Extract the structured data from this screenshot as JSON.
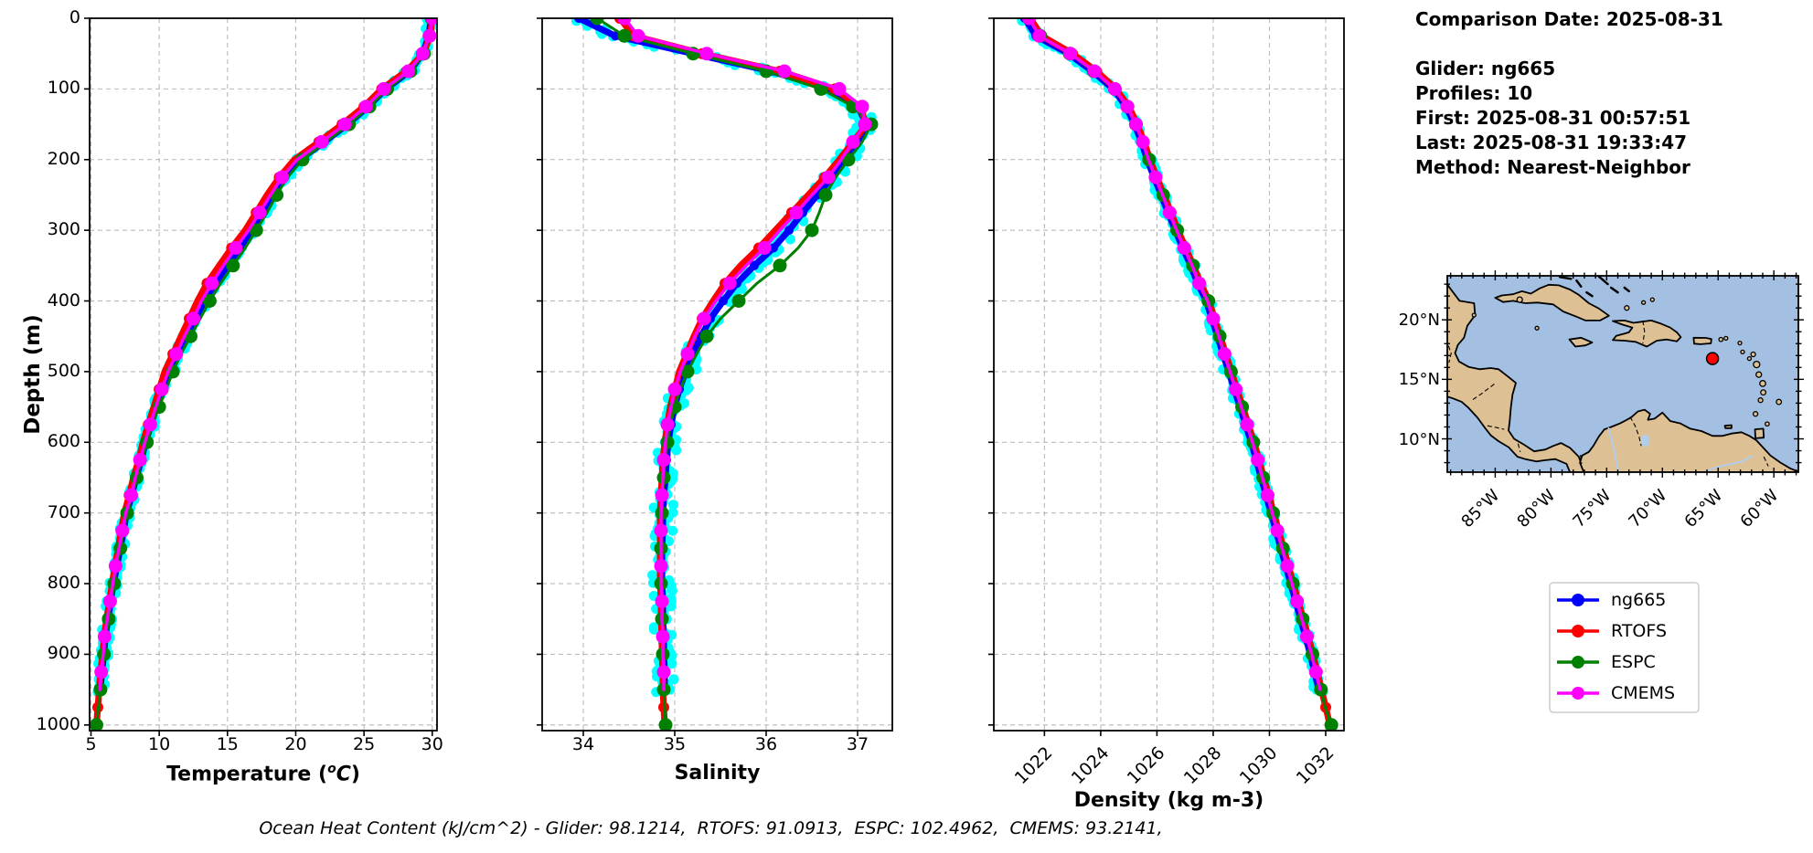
{
  "info_panel": {
    "lines": [
      "Comparison Date: 2025-08-31",
      "",
      "Glider: ng665",
      "Profiles: 10",
      "First: 2025-08-31 00:57:51",
      "Last: 2025-08-31 19:33:47",
      "Method: Nearest-Neighbor"
    ]
  },
  "caption": {
    "text": "Ocean Heat Content (kJ/cm^2) - Glider: 98.1214,  RTOFS: 91.0913,  ESPC: 102.4962,  CMEMS: 93.2141,"
  },
  "axes": {
    "depth_label": "Depth (m)",
    "depth_ticks": [
      0,
      100,
      200,
      300,
      400,
      500,
      600,
      700,
      800,
      900,
      1000
    ]
  },
  "legend": {
    "items": [
      {
        "label": "ng665",
        "color": "#0000ff"
      },
      {
        "label": "RTOFS",
        "color": "#ff0000"
      },
      {
        "label": "ESPC",
        "color": "#008000"
      },
      {
        "label": "CMEMS",
        "color": "#ff00ff"
      }
    ]
  },
  "map": {
    "extent": {
      "lon_min": -89.3,
      "lon_max": -57.8,
      "lat_min": 7.2,
      "lat_max": 23.7
    },
    "lon_ticks": [
      {
        "label": "85°W",
        "lon": -85
      },
      {
        "label": "80°W",
        "lon": -80
      },
      {
        "label": "75°W",
        "lon": -75
      },
      {
        "label": "70°W",
        "lon": -70
      },
      {
        "label": "65°W",
        "lon": -65
      },
      {
        "label": "60°W",
        "lon": -60
      }
    ],
    "lat_ticks": [
      {
        "label": "20°N",
        "lat": 20
      },
      {
        "label": "15°N",
        "lat": 15
      },
      {
        "label": "10°N",
        "lat": 10
      }
    ],
    "marker": {
      "lon": -65.5,
      "lat": 16.75
    },
    "colors": {
      "ocean": "#a3c0e2",
      "land": "#ddc093",
      "coast": "#000000",
      "water": "#b3cdec",
      "marker": "#ff0000"
    }
  },
  "colors": {
    "grid": "#b9b9b9",
    "spine": "#000000",
    "background": "#ffffff"
  },
  "chart_data": {
    "type": "line",
    "ylabel": "Depth (m)",
    "ylim": [
      0,
      1008
    ],
    "depths": [
      0,
      25,
      50,
      75,
      100,
      125,
      150,
      175,
      200,
      225,
      250,
      275,
      300,
      325,
      350,
      375,
      400,
      425,
      450,
      475,
      500,
      525,
      550,
      575,
      600,
      625,
      650,
      675,
      700,
      725,
      750,
      775,
      800,
      825,
      850,
      875,
      900,
      925,
      950,
      975,
      1000
    ],
    "glider_raw": {
      "name": "glider-raw-scatter",
      "color": "#00ffff",
      "dot_radius": 5.5,
      "jitter": {
        "temperature": 0.3,
        "salinity": 0.1,
        "density": 0.16
      }
    },
    "charts": [
      {
        "id": "temperature",
        "xlabel_parts": {
          "pre": "Temperature (",
          "sup": "o",
          "it": "C",
          "post": ")"
        },
        "xlim": [
          4.9,
          30.35
        ],
        "xticks": [
          5,
          10,
          15,
          20,
          25,
          30
        ],
        "xtick_labels": [
          "5",
          "10",
          "15",
          "20",
          "25",
          "30"
        ],
        "rotate_xticklabels": false,
        "series": [
          {
            "name": "ng665",
            "color": "#0000ff",
            "line_width": 7,
            "marker_size": 5,
            "markers": "all",
            "values": [
              29.9,
              29.75,
              29.3,
              28.35,
              26.6,
              25.3,
              23.8,
              22.1,
              20.3,
              19.2,
              18.4,
              17.6,
              16.8,
              15.9,
              15.0,
              14.1,
              13.3,
              12.7,
              12.0,
              11.4,
              10.8,
              10.3,
              9.8,
              9.4,
              9.0,
              8.7,
              8.3,
              8.0,
              7.6,
              7.4,
              7.15,
              6.9,
              6.65,
              6.45,
              6.25,
              6.05,
              5.95,
              5.8,
              5.7
            ]
          },
          {
            "name": "RTOFS",
            "color": "#ff0000",
            "line_width": 7,
            "marker_size": 6,
            "markers": "odd",
            "values": [
              30.0,
              29.85,
              29.35,
              28.1,
              26.3,
              25.0,
              23.4,
              21.7,
              19.9,
              18.8,
              17.9,
              17.1,
              16.3,
              15.3,
              14.4,
              13.5,
              12.8,
              12.2,
              11.6,
              11.0,
              10.4,
              10.0,
              9.6,
              9.2,
              8.8,
              8.5,
              8.1,
              7.8,
              7.45,
              7.2,
              7.0,
              6.75,
              6.55,
              6.35,
              6.15,
              5.95,
              5.85,
              5.7,
              5.6,
              5.5,
              5.4
            ]
          },
          {
            "name": "ESPC",
            "color": "#008000",
            "line_width": 3,
            "marker_size": 7.5,
            "markers": "even",
            "values": [
              29.95,
              29.8,
              29.4,
              28.4,
              26.7,
              25.4,
              23.9,
              22.2,
              20.5,
              19.4,
              18.6,
              17.9,
              17.1,
              16.3,
              15.4,
              14.5,
              13.7,
              13.0,
              12.3,
              11.6,
              11.0,
              10.5,
              10.0,
              9.5,
              9.1,
              8.75,
              8.35,
              8.05,
              7.65,
              7.4,
              7.15,
              6.9,
              6.7,
              6.5,
              6.3,
              6.1,
              5.95,
              5.8,
              5.7,
              5.55,
              5.4
            ]
          },
          {
            "name": "CMEMS",
            "color": "#ff00ff",
            "line_width": 3.5,
            "marker_size": 7.5,
            "markers": "odd",
            "values": [
              30.0,
              29.8,
              29.3,
              28.25,
              26.45,
              25.15,
              23.6,
              21.9,
              20.1,
              19.0,
              18.15,
              17.35,
              16.55,
              15.6,
              14.7,
              13.85,
              13.1,
              12.5,
              11.85,
              11.25,
              10.65,
              10.2,
              9.75,
              9.35,
              8.95,
              8.6,
              8.25,
              7.95,
              7.55,
              7.3,
              7.05,
              6.8,
              6.6,
              6.4,
              6.2,
              6.0,
              5.9,
              5.75,
              5.65
            ]
          }
        ]
      },
      {
        "id": "salinity",
        "xlabel": "Salinity",
        "xlim": [
          33.55,
          37.38
        ],
        "xticks": [
          34,
          35,
          36,
          37
        ],
        "xtick_labels": [
          "34",
          "35",
          "36",
          "37"
        ],
        "rotate_xticklabels": false,
        "series": [
          {
            "name": "ng665",
            "color": "#0000ff",
            "line_width": 7,
            "marker_size": 5,
            "markers": "all",
            "values": [
              33.95,
              34.35,
              35.2,
              36.05,
              36.7,
              37.0,
              37.1,
              37.0,
              36.86,
              36.72,
              36.56,
              36.4,
              36.25,
              36.08,
              35.87,
              35.68,
              35.53,
              35.39,
              35.29,
              35.2,
              35.12,
              35.05,
              35.0,
              34.96,
              34.93,
              34.91,
              34.9,
              34.88,
              34.87,
              34.87,
              34.86,
              34.86,
              34.86,
              34.87,
              34.87,
              34.88,
              34.88,
              34.89,
              34.89
            ]
          },
          {
            "name": "RTOFS",
            "color": "#ff0000",
            "line_width": 7,
            "marker_size": 6,
            "markers": "odd",
            "values": [
              34.4,
              34.55,
              35.3,
              36.15,
              36.75,
              37.02,
              37.1,
              36.95,
              36.8,
              36.64,
              36.46,
              36.28,
              36.1,
              35.92,
              35.72,
              35.55,
              35.42,
              35.3,
              35.21,
              35.13,
              35.05,
              35.0,
              34.95,
              34.92,
              34.89,
              34.87,
              34.86,
              34.85,
              34.84,
              34.84,
              34.84,
              34.84,
              34.84,
              34.85,
              34.85,
              34.86,
              34.86,
              34.87,
              34.87,
              34.88,
              34.89
            ]
          },
          {
            "name": "ESPC",
            "color": "#008000",
            "line_width": 3,
            "marker_size": 7.5,
            "markers": "even",
            "values": [
              34.15,
              34.45,
              35.2,
              36.0,
              36.6,
              36.95,
              37.15,
              37.05,
              36.9,
              36.76,
              36.65,
              36.58,
              36.5,
              36.35,
              36.15,
              35.9,
              35.7,
              35.5,
              35.35,
              35.24,
              35.14,
              35.06,
              35.0,
              34.95,
              34.92,
              34.9,
              34.88,
              34.87,
              34.86,
              34.86,
              34.85,
              34.85,
              34.85,
              34.86,
              34.86,
              34.87,
              34.87,
              34.88,
              34.88,
              34.89,
              34.9
            ]
          },
          {
            "name": "CMEMS",
            "color": "#ff00ff",
            "line_width": 3.5,
            "marker_size": 7.5,
            "markers": "odd",
            "values": [
              34.45,
              34.6,
              35.35,
              36.2,
              36.8,
              37.05,
              37.08,
              36.95,
              36.82,
              36.68,
              36.5,
              36.33,
              36.15,
              35.98,
              35.78,
              35.6,
              35.45,
              35.32,
              35.22,
              35.14,
              35.06,
              35.0,
              34.96,
              34.92,
              34.9,
              34.88,
              34.87,
              34.86,
              34.85,
              34.85,
              34.85,
              34.85,
              34.85,
              34.86,
              34.86,
              34.87,
              34.87,
              34.88,
              34.88
            ]
          }
        ]
      },
      {
        "id": "density",
        "xlabel": "Density (kg m-3)",
        "xlim": [
          1020.2,
          1032.65
        ],
        "xticks": [
          1022,
          1024,
          1026,
          1028,
          1030,
          1032
        ],
        "xtick_labels": [
          "1022",
          "1024",
          "1026",
          "1028",
          "1030",
          "1032"
        ],
        "rotate_xticklabels": true,
        "series": [
          {
            "name": "ng665",
            "color": "#0000ff",
            "line_width": 7,
            "marker_size": 5,
            "markers": "all",
            "values": [
              1021.3,
              1021.7,
              1022.85,
              1023.7,
              1024.45,
              1024.9,
              1025.2,
              1025.45,
              1025.65,
              1025.9,
              1026.15,
              1026.4,
              1026.65,
              1026.92,
              1027.2,
              1027.45,
              1027.75,
              1027.95,
              1028.15,
              1028.35,
              1028.55,
              1028.75,
              1028.95,
              1029.15,
              1029.35,
              1029.53,
              1029.7,
              1029.88,
              1030.05,
              1030.23,
              1030.4,
              1030.58,
              1030.75,
              1030.93,
              1031.1,
              1031.28,
              1031.45,
              1031.6,
              1031.75
            ]
          },
          {
            "name": "RTOFS",
            "color": "#ff0000",
            "line_width": 7,
            "marker_size": 6,
            "markers": "odd",
            "values": [
              1021.5,
              1021.9,
              1023.0,
              1023.85,
              1024.55,
              1025.0,
              1025.3,
              1025.55,
              1025.75,
              1026.0,
              1026.25,
              1026.5,
              1026.75,
              1027.02,
              1027.3,
              1027.55,
              1027.85,
              1028.05,
              1028.25,
              1028.45,
              1028.65,
              1028.85,
              1029.05,
              1029.25,
              1029.45,
              1029.63,
              1029.8,
              1029.98,
              1030.15,
              1030.33,
              1030.5,
              1030.68,
              1030.85,
              1031.03,
              1031.2,
              1031.38,
              1031.55,
              1031.7,
              1031.85,
              1032.0,
              1032.15
            ]
          },
          {
            "name": "ESPC",
            "color": "#008000",
            "line_width": 3,
            "marker_size": 7.5,
            "markers": "even",
            "values": [
              1021.45,
              1021.85,
              1022.9,
              1023.75,
              1024.5,
              1024.95,
              1025.25,
              1025.5,
              1025.72,
              1025.97,
              1026.22,
              1026.47,
              1026.72,
              1027.0,
              1027.28,
              1027.53,
              1027.83,
              1028.03,
              1028.23,
              1028.43,
              1028.63,
              1028.83,
              1029.03,
              1029.23,
              1029.43,
              1029.61,
              1029.78,
              1029.96,
              1030.13,
              1030.31,
              1030.48,
              1030.66,
              1030.83,
              1031.01,
              1031.18,
              1031.36,
              1031.53,
              1031.68,
              1031.83,
              1031.98,
              1032.2
            ]
          },
          {
            "name": "CMEMS",
            "color": "#ff00ff",
            "line_width": 3.5,
            "marker_size": 7.5,
            "markers": "odd",
            "values": [
              1021.45,
              1021.82,
              1022.92,
              1023.78,
              1024.5,
              1024.95,
              1025.25,
              1025.5,
              1025.7,
              1025.95,
              1026.2,
              1026.45,
              1026.7,
              1026.97,
              1027.25,
              1027.5,
              1027.8,
              1028.0,
              1028.2,
              1028.4,
              1028.6,
              1028.8,
              1029.0,
              1029.2,
              1029.4,
              1029.58,
              1029.75,
              1029.93,
              1030.1,
              1030.28,
              1030.45,
              1030.63,
              1030.8,
              1030.98,
              1031.15,
              1031.33,
              1031.5,
              1031.65,
              1031.8
            ]
          }
        ]
      }
    ]
  }
}
